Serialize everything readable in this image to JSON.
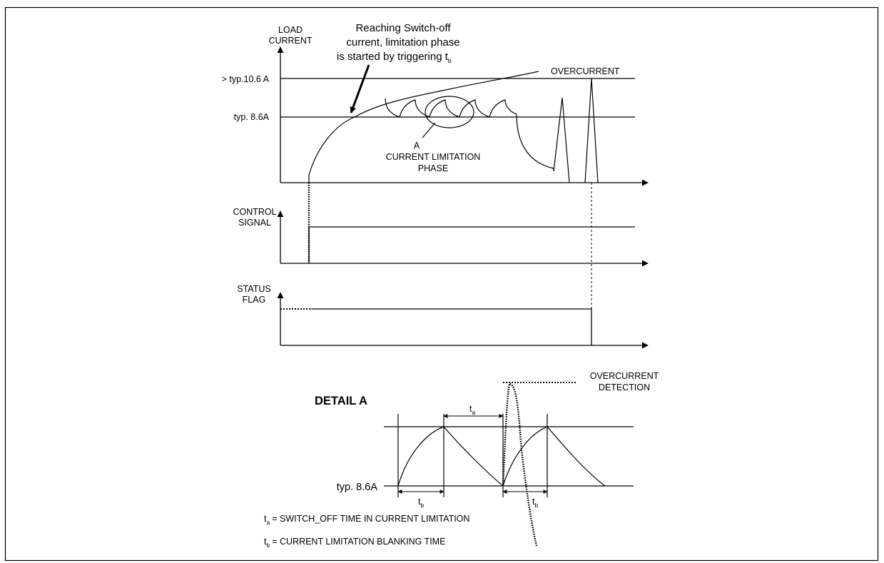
{
  "load_current": {
    "axis_label_1": "LOAD",
    "axis_label_2": "CURRENT",
    "level_high": "> typ.10.6 A",
    "level_low": "typ. 8.6A",
    "annotation_line1": "Reaching Switch-off",
    "annotation_line2": "current, limitation phase",
    "annotation_line3": "is started by triggering t",
    "annotation_sub": "b",
    "overcurrent": "OVERCURRENT",
    "phase_letter": "A",
    "phase_line1": "CURRENT LIMITATION",
    "phase_line2": "PHASE"
  },
  "control_signal": {
    "label_1": "CONTROL",
    "label_2": "SIGNAL"
  },
  "status_flag": {
    "label_1": "STATUS",
    "label_2": "FLAG"
  },
  "detail": {
    "title": "DETAIL A",
    "overcurrent_1": "OVERCURRENT",
    "overcurrent_2": "DETECTION",
    "level_low": "typ. 8.6A",
    "t_main": "t",
    "sub_a": "a",
    "sub_b": "b",
    "legend_a": "= SWITCH_OFF TIME IN CURRENT LIMITATION",
    "legend_b": "= CURRENT LIMITATION BLANKING TIME"
  }
}
